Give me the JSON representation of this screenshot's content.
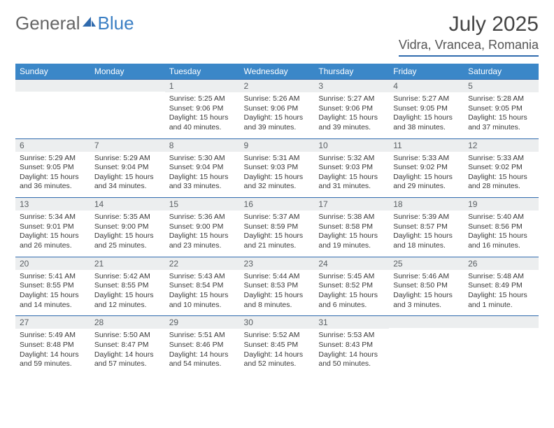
{
  "brand": {
    "part1": "General",
    "part2": "Blue"
  },
  "title": "July 2025",
  "location": "Vidra, Vrancea, Romania",
  "colors": {
    "header_bg": "#3b87c8",
    "header_text": "#ffffff",
    "accent_line": "#2f6aad",
    "daynum_bg": "#eceeef",
    "daynum_text": "#5a5f63",
    "body_text": "#3a3a3a",
    "brand_gray": "#666666",
    "brand_blue": "#3b7fc4"
  },
  "day_headers": [
    "Sunday",
    "Monday",
    "Tuesday",
    "Wednesday",
    "Thursday",
    "Friday",
    "Saturday"
  ],
  "weeks": [
    [
      null,
      null,
      {
        "n": "1",
        "sr": "Sunrise: 5:25 AM",
        "ss": "Sunset: 9:06 PM",
        "dl": "Daylight: 15 hours and 40 minutes."
      },
      {
        "n": "2",
        "sr": "Sunrise: 5:26 AM",
        "ss": "Sunset: 9:06 PM",
        "dl": "Daylight: 15 hours and 39 minutes."
      },
      {
        "n": "3",
        "sr": "Sunrise: 5:27 AM",
        "ss": "Sunset: 9:06 PM",
        "dl": "Daylight: 15 hours and 39 minutes."
      },
      {
        "n": "4",
        "sr": "Sunrise: 5:27 AM",
        "ss": "Sunset: 9:05 PM",
        "dl": "Daylight: 15 hours and 38 minutes."
      },
      {
        "n": "5",
        "sr": "Sunrise: 5:28 AM",
        "ss": "Sunset: 9:05 PM",
        "dl": "Daylight: 15 hours and 37 minutes."
      }
    ],
    [
      {
        "n": "6",
        "sr": "Sunrise: 5:29 AM",
        "ss": "Sunset: 9:05 PM",
        "dl": "Daylight: 15 hours and 36 minutes."
      },
      {
        "n": "7",
        "sr": "Sunrise: 5:29 AM",
        "ss": "Sunset: 9:04 PM",
        "dl": "Daylight: 15 hours and 34 minutes."
      },
      {
        "n": "8",
        "sr": "Sunrise: 5:30 AM",
        "ss": "Sunset: 9:04 PM",
        "dl": "Daylight: 15 hours and 33 minutes."
      },
      {
        "n": "9",
        "sr": "Sunrise: 5:31 AM",
        "ss": "Sunset: 9:03 PM",
        "dl": "Daylight: 15 hours and 32 minutes."
      },
      {
        "n": "10",
        "sr": "Sunrise: 5:32 AM",
        "ss": "Sunset: 9:03 PM",
        "dl": "Daylight: 15 hours and 31 minutes."
      },
      {
        "n": "11",
        "sr": "Sunrise: 5:33 AM",
        "ss": "Sunset: 9:02 PM",
        "dl": "Daylight: 15 hours and 29 minutes."
      },
      {
        "n": "12",
        "sr": "Sunrise: 5:33 AM",
        "ss": "Sunset: 9:02 PM",
        "dl": "Daylight: 15 hours and 28 minutes."
      }
    ],
    [
      {
        "n": "13",
        "sr": "Sunrise: 5:34 AM",
        "ss": "Sunset: 9:01 PM",
        "dl": "Daylight: 15 hours and 26 minutes."
      },
      {
        "n": "14",
        "sr": "Sunrise: 5:35 AM",
        "ss": "Sunset: 9:00 PM",
        "dl": "Daylight: 15 hours and 25 minutes."
      },
      {
        "n": "15",
        "sr": "Sunrise: 5:36 AM",
        "ss": "Sunset: 9:00 PM",
        "dl": "Daylight: 15 hours and 23 minutes."
      },
      {
        "n": "16",
        "sr": "Sunrise: 5:37 AM",
        "ss": "Sunset: 8:59 PM",
        "dl": "Daylight: 15 hours and 21 minutes."
      },
      {
        "n": "17",
        "sr": "Sunrise: 5:38 AM",
        "ss": "Sunset: 8:58 PM",
        "dl": "Daylight: 15 hours and 19 minutes."
      },
      {
        "n": "18",
        "sr": "Sunrise: 5:39 AM",
        "ss": "Sunset: 8:57 PM",
        "dl": "Daylight: 15 hours and 18 minutes."
      },
      {
        "n": "19",
        "sr": "Sunrise: 5:40 AM",
        "ss": "Sunset: 8:56 PM",
        "dl": "Daylight: 15 hours and 16 minutes."
      }
    ],
    [
      {
        "n": "20",
        "sr": "Sunrise: 5:41 AM",
        "ss": "Sunset: 8:55 PM",
        "dl": "Daylight: 15 hours and 14 minutes."
      },
      {
        "n": "21",
        "sr": "Sunrise: 5:42 AM",
        "ss": "Sunset: 8:55 PM",
        "dl": "Daylight: 15 hours and 12 minutes."
      },
      {
        "n": "22",
        "sr": "Sunrise: 5:43 AM",
        "ss": "Sunset: 8:54 PM",
        "dl": "Daylight: 15 hours and 10 minutes."
      },
      {
        "n": "23",
        "sr": "Sunrise: 5:44 AM",
        "ss": "Sunset: 8:53 PM",
        "dl": "Daylight: 15 hours and 8 minutes."
      },
      {
        "n": "24",
        "sr": "Sunrise: 5:45 AM",
        "ss": "Sunset: 8:52 PM",
        "dl": "Daylight: 15 hours and 6 minutes."
      },
      {
        "n": "25",
        "sr": "Sunrise: 5:46 AM",
        "ss": "Sunset: 8:50 PM",
        "dl": "Daylight: 15 hours and 3 minutes."
      },
      {
        "n": "26",
        "sr": "Sunrise: 5:48 AM",
        "ss": "Sunset: 8:49 PM",
        "dl": "Daylight: 15 hours and 1 minute."
      }
    ],
    [
      {
        "n": "27",
        "sr": "Sunrise: 5:49 AM",
        "ss": "Sunset: 8:48 PM",
        "dl": "Daylight: 14 hours and 59 minutes."
      },
      {
        "n": "28",
        "sr": "Sunrise: 5:50 AM",
        "ss": "Sunset: 8:47 PM",
        "dl": "Daylight: 14 hours and 57 minutes."
      },
      {
        "n": "29",
        "sr": "Sunrise: 5:51 AM",
        "ss": "Sunset: 8:46 PM",
        "dl": "Daylight: 14 hours and 54 minutes."
      },
      {
        "n": "30",
        "sr": "Sunrise: 5:52 AM",
        "ss": "Sunset: 8:45 PM",
        "dl": "Daylight: 14 hours and 52 minutes."
      },
      {
        "n": "31",
        "sr": "Sunrise: 5:53 AM",
        "ss": "Sunset: 8:43 PM",
        "dl": "Daylight: 14 hours and 50 minutes."
      },
      null,
      null
    ]
  ]
}
